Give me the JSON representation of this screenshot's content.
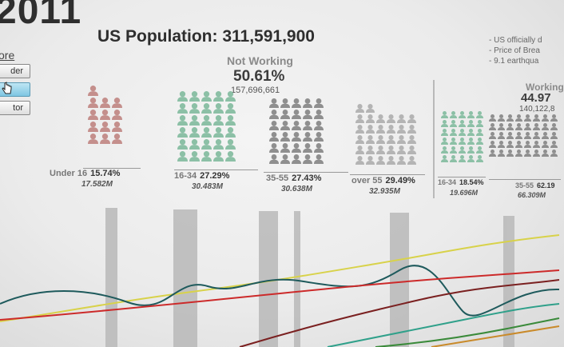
{
  "header": {
    "year": "2011",
    "title": "US Population: 311,591,900",
    "notes": [
      "- US officially d",
      "- Price of Brea",
      "- 9.1 earthqua"
    ]
  },
  "sidebar": {
    "more_label": "ore",
    "buttons": [
      {
        "label": "der",
        "active": false
      },
      {
        "label": "",
        "active": true
      },
      {
        "label": "tor",
        "active": false
      }
    ],
    "cursor_icon": "hand-pointer-icon"
  },
  "not_working": {
    "label": "Not Working",
    "percent": "50.61%",
    "count": "157,696,661",
    "groups": [
      {
        "name": "Under 16",
        "percent": "15.74%",
        "value": "17.582M",
        "color": "#c48f8c",
        "icons": 13
      },
      {
        "name": "16-34",
        "percent": "27.29%",
        "value": "30.483M",
        "color": "#8cc0a6",
        "icons": 30
      },
      {
        "name": "35-55",
        "percent": "27.43%",
        "value": "30.638M",
        "color": "#8f8f8f",
        "icons": 30
      },
      {
        "name": "over 55",
        "percent": "29.49%",
        "value": "32.935M",
        "color": "#b4b4b4",
        "icons": 32
      }
    ]
  },
  "working": {
    "label": "Working",
    "percent": "44.97",
    "count": "140,122,8",
    "groups": [
      {
        "name": "16-34",
        "percent": "18.54%",
        "value": "19.696M",
        "color": "#8cc0a6",
        "icons": 30
      },
      {
        "name": "35-55",
        "percent": "62.19",
        "value": "66.309M",
        "color": "#8f8f8f",
        "icons": 40
      }
    ]
  },
  "line_colors": [
    "#d8d24a",
    "#1e5a5c",
    "#cc2a2a",
    "#7a2020",
    "#2fa08a",
    "#3a8a3a",
    "#c98a2a"
  ]
}
